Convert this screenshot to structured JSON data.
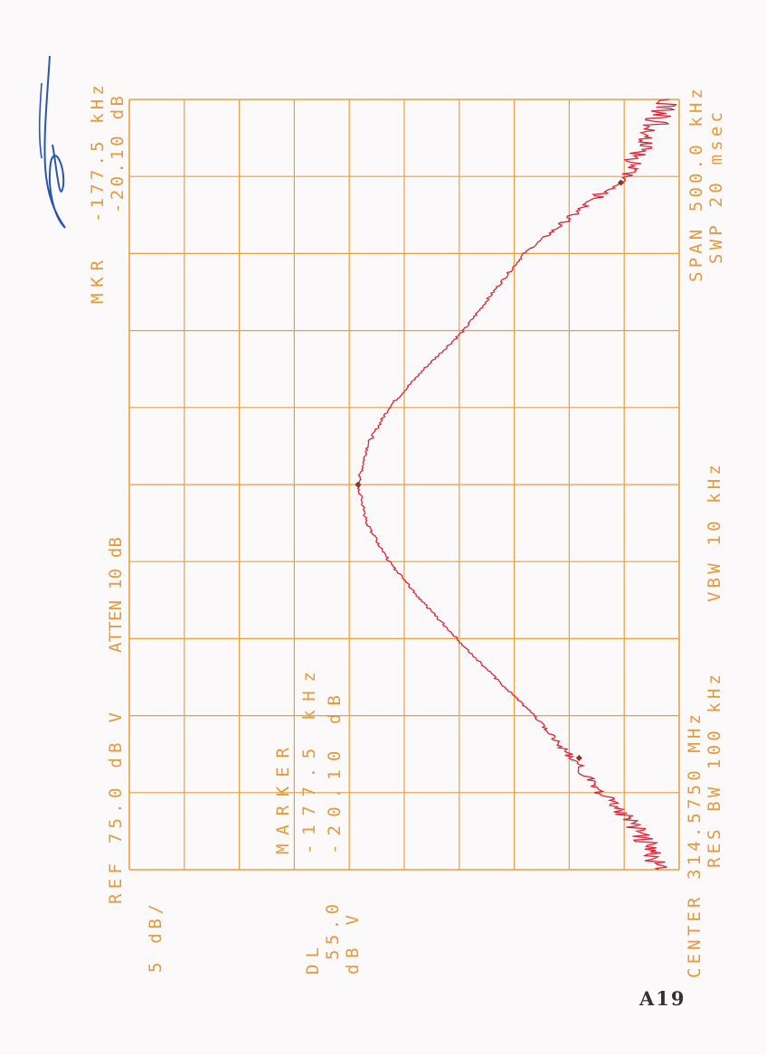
{
  "page_label": "A19",
  "signature": "handwritten signature",
  "colors": {
    "grid": "#e8a040",
    "text": "#e59a3c",
    "trace": "#d8283a",
    "marker": "#8a3a20",
    "ink": "#2a55b0"
  },
  "header": {
    "ref": "REF 75.0 dB V",
    "atten": "ATTEN 10 dB",
    "mkr_title": "MKR",
    "mkr_freq": "-177.5 kHz",
    "mkr_level": "-20.10 dB"
  },
  "scale": {
    "per_div": "5 dB/"
  },
  "display_line": {
    "label": "DL",
    "value": "55.0",
    "unit": "dB V"
  },
  "marker_box": {
    "title": "MARKER",
    "freq": "-177.5 kHz",
    "level": "-20.10 dB"
  },
  "footer": {
    "center": "CENTER 314.5750 MHz",
    "res_bw": "RES BW 100 kHz",
    "vbw": "VBW 10 kHz",
    "span": "SPAN 500.0 kHz",
    "swp": "SWP 20 msec"
  },
  "chart_data": {
    "type": "line",
    "title": "",
    "xlabel": "",
    "ylabel": "",
    "x_unit": "MHz",
    "y_unit": "dBV",
    "xlim": [
      314.325,
      314.825
    ],
    "ylim": [
      25,
      75
    ],
    "x_divisions": 10,
    "y_divisions": 10,
    "grid": true,
    "orientation": "rotated 90 degrees counter-clockwise on page",
    "series": [
      {
        "x": [
          314.325,
          314.35,
          314.375,
          314.4,
          314.425,
          314.45,
          314.475,
          314.5,
          314.525,
          314.55,
          314.575,
          314.6,
          314.625,
          314.65,
          314.675,
          314.7,
          314.725,
          314.75,
          314.775,
          314.8,
          314.825
        ],
        "y": [
          26.9,
          28.5,
          32.1,
          35.1,
          38.2,
          41.8,
          45.2,
          48.5,
          51.4,
          53.4,
          54.2,
          53.4,
          51.4,
          48.2,
          44.6,
          41.9,
          39.1,
          34.6,
          30.0,
          27.8,
          26.0
        ]
      }
    ],
    "markers": [
      {
        "x": 314.575,
        "y": 54.2
      },
      {
        "x": 314.3975,
        "y": 34.1,
        "delta_freq_khz": -177.5,
        "delta_db": -20.1
      },
      {
        "x": 314.771,
        "y": 30.3
      }
    ]
  }
}
